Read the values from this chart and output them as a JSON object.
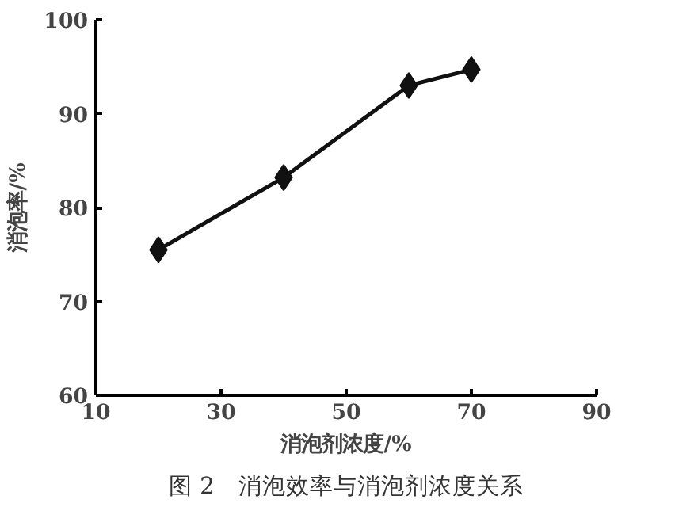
{
  "chart_data": {
    "type": "line",
    "xlabel": "消泡剂浓度/%",
    "ylabel": "消泡率/%",
    "x": [
      20,
      40,
      60,
      70
    ],
    "series": [
      {
        "color": "#111111",
        "values": [
          75.5,
          83.2,
          93.0,
          94.7
        ]
      }
    ],
    "xlim": [
      10,
      90
    ],
    "xticks": [
      10,
      30,
      50,
      70,
      90
    ],
    "ylim": [
      60,
      100
    ],
    "yticks": [
      60,
      70,
      80,
      90,
      100
    ],
    "marker": "diamond",
    "line_style": "solid",
    "grid": false,
    "annotations": [
      "图 2　消泡效率与消泡剂浓度关系"
    ]
  }
}
